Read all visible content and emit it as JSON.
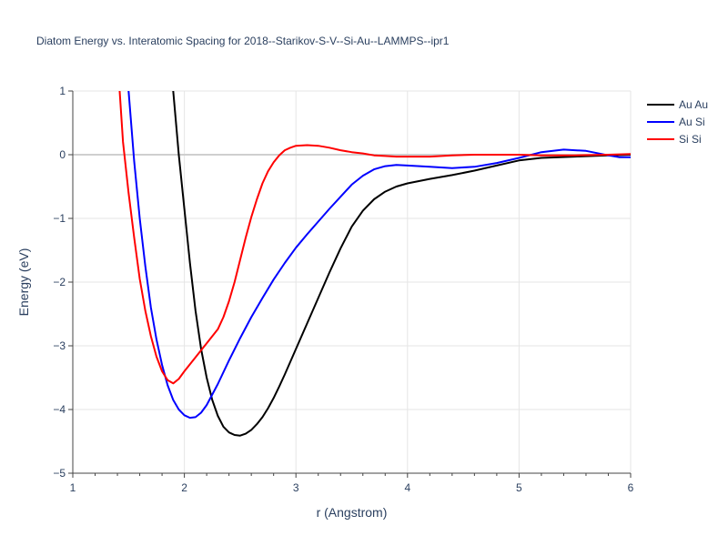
{
  "chart_data": {
    "type": "line",
    "title": "Diatom Energy vs. Interatomic Spacing for 2018--Starikov-S-V--Si-Au--LAMMPS--ipr1",
    "xlabel": "r (Angstrom)",
    "ylabel": "Energy (eV)",
    "xlim": [
      1,
      6
    ],
    "ylim": [
      -5,
      1
    ],
    "x_ticks": [
      "1",
      "2",
      "3",
      "4",
      "5",
      "6"
    ],
    "y_ticks": [
      "−5",
      "−4",
      "−3",
      "−2",
      "−1",
      "0",
      "1"
    ],
    "grid": true,
    "legend_position": "top-right",
    "series": [
      {
        "name": "Au Au",
        "color": "#000000",
        "x": [
          1.9,
          1.95,
          2.0,
          2.05,
          2.1,
          2.15,
          2.2,
          2.25,
          2.3,
          2.35,
          2.4,
          2.45,
          2.5,
          2.55,
          2.6,
          2.65,
          2.7,
          2.75,
          2.8,
          2.85,
          2.9,
          3.0,
          3.1,
          3.2,
          3.3,
          3.4,
          3.5,
          3.6,
          3.7,
          3.8,
          3.9,
          4.0,
          4.2,
          4.4,
          4.6,
          4.8,
          5.0,
          5.2,
          5.5,
          5.8,
          6.0
        ],
        "y": [
          1.0,
          0.0,
          -0.85,
          -1.7,
          -2.45,
          -3.05,
          -3.5,
          -3.85,
          -4.1,
          -4.27,
          -4.36,
          -4.4,
          -4.41,
          -4.38,
          -4.32,
          -4.23,
          -4.12,
          -3.98,
          -3.82,
          -3.64,
          -3.45,
          -3.05,
          -2.65,
          -2.25,
          -1.85,
          -1.47,
          -1.13,
          -0.88,
          -0.7,
          -0.58,
          -0.5,
          -0.45,
          -0.38,
          -0.32,
          -0.25,
          -0.17,
          -0.09,
          -0.05,
          -0.03,
          -0.01,
          0.0
        ]
      },
      {
        "name": "Au Si",
        "color": "#0000ff",
        "x": [
          1.5,
          1.55,
          1.6,
          1.65,
          1.7,
          1.75,
          1.8,
          1.85,
          1.9,
          1.95,
          2.0,
          2.05,
          2.1,
          2.15,
          2.2,
          2.3,
          2.4,
          2.5,
          2.6,
          2.7,
          2.8,
          2.9,
          3.0,
          3.1,
          3.2,
          3.3,
          3.4,
          3.5,
          3.6,
          3.7,
          3.8,
          3.9,
          4.0,
          4.2,
          4.4,
          4.6,
          4.8,
          5.0,
          5.2,
          5.4,
          5.6,
          5.8,
          5.9,
          6.0
        ],
        "y": [
          1.0,
          -0.1,
          -1.0,
          -1.75,
          -2.4,
          -2.9,
          -3.3,
          -3.62,
          -3.85,
          -4.0,
          -4.09,
          -4.13,
          -4.12,
          -4.05,
          -3.93,
          -3.6,
          -3.23,
          -2.88,
          -2.55,
          -2.25,
          -1.96,
          -1.7,
          -1.46,
          -1.25,
          -1.05,
          -0.85,
          -0.66,
          -0.47,
          -0.33,
          -0.23,
          -0.18,
          -0.16,
          -0.17,
          -0.19,
          -0.21,
          -0.19,
          -0.13,
          -0.05,
          0.04,
          0.08,
          0.06,
          -0.01,
          -0.04,
          -0.04
        ]
      },
      {
        "name": "Si Si",
        "color": "#ff0000",
        "x": [
          1.42,
          1.45,
          1.5,
          1.55,
          1.6,
          1.65,
          1.7,
          1.75,
          1.8,
          1.85,
          1.9,
          1.95,
          2.0,
          2.1,
          2.2,
          2.3,
          2.35,
          2.4,
          2.45,
          2.5,
          2.55,
          2.6,
          2.65,
          2.7,
          2.75,
          2.8,
          2.85,
          2.9,
          2.95,
          3.0,
          3.1,
          3.2,
          3.3,
          3.4,
          3.5,
          3.6,
          3.7,
          3.8,
          3.9,
          4.0,
          4.2,
          4.4,
          4.6,
          4.8,
          5.0,
          5.2,
          5.5,
          5.8,
          6.0
        ],
        "y": [
          1.0,
          0.2,
          -0.6,
          -1.3,
          -1.95,
          -2.45,
          -2.85,
          -3.17,
          -3.4,
          -3.54,
          -3.59,
          -3.52,
          -3.4,
          -3.18,
          -2.96,
          -2.74,
          -2.55,
          -2.3,
          -2.0,
          -1.65,
          -1.3,
          -0.98,
          -0.7,
          -0.45,
          -0.26,
          -0.12,
          -0.01,
          0.07,
          0.11,
          0.14,
          0.15,
          0.14,
          0.11,
          0.07,
          0.04,
          0.02,
          -0.01,
          -0.02,
          -0.03,
          -0.03,
          -0.03,
          -0.01,
          0.0,
          0.0,
          0.0,
          -0.01,
          -0.01,
          0.0,
          0.01
        ]
      }
    ]
  }
}
